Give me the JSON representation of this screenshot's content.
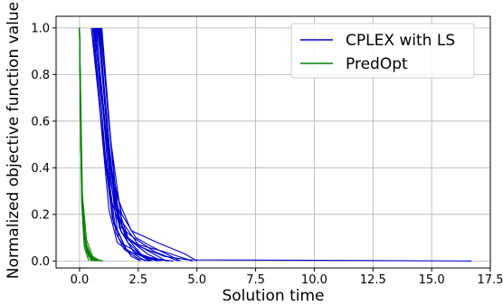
{
  "chart_data": {
    "type": "line",
    "title": "",
    "xlabel": "Solution time",
    "ylabel": "Normalized objective function value",
    "xlim": [
      -1.0,
      17.5
    ],
    "ylim": [
      -0.03,
      1.05
    ],
    "xticks": [
      0.0,
      2.5,
      5.0,
      7.5,
      10.0,
      12.5,
      15.0,
      17.5
    ],
    "xtick_labels": [
      "0.0",
      "2.5",
      "5.0",
      "7.5",
      "10.0",
      "12.5",
      "15.0",
      "17.5"
    ],
    "yticks": [
      0.0,
      0.2,
      0.4,
      0.6,
      0.8,
      1.0
    ],
    "ytick_labels": [
      "0.0",
      "0.2",
      "0.4",
      "0.6",
      "0.8",
      "1.0"
    ],
    "grid": true,
    "legend_position": "top-right",
    "series": [
      {
        "name": "CPLEX with LS",
        "color": "#0000cc",
        "lines": [
          {
            "x": [
              0.5,
              0.9,
              1.3,
              1.8,
              2.6,
              3.6,
              4.6,
              16.7
            ],
            "y": [
              1.0,
              0.62,
              0.28,
              0.12,
              0.06,
              0.02,
              0.005,
              0.0
            ]
          },
          {
            "x": [
              0.55,
              0.95,
              1.25,
              1.6,
              2.1,
              3.0,
              4.0
            ],
            "y": [
              1.0,
              0.55,
              0.22,
              0.08,
              0.04,
              0.01,
              0.0
            ]
          },
          {
            "x": [
              0.6,
              1.0,
              1.4,
              1.9,
              2.6,
              3.4
            ],
            "y": [
              1.0,
              0.5,
              0.18,
              0.07,
              0.03,
              0.0
            ]
          },
          {
            "x": [
              0.62,
              1.05,
              1.5,
              2.2,
              3.3,
              4.5,
              5.0
            ],
            "y": [
              1.0,
              0.6,
              0.3,
              0.13,
              0.08,
              0.03,
              0.0
            ]
          },
          {
            "x": [
              0.65,
              1.1,
              1.45,
              2.0,
              2.8
            ],
            "y": [
              1.0,
              0.45,
              0.16,
              0.05,
              0.0
            ]
          },
          {
            "x": [
              0.68,
              0.98,
              1.3,
              1.7,
              2.3,
              3.2,
              4.2
            ],
            "y": [
              1.0,
              0.7,
              0.35,
              0.15,
              0.1,
              0.04,
              0.0
            ]
          },
          {
            "x": [
              0.7,
              1.15,
              1.6,
              2.1,
              2.7,
              3.8
            ],
            "y": [
              1.0,
              0.52,
              0.2,
              0.09,
              0.02,
              0.0
            ]
          },
          {
            "x": [
              0.72,
              1.2,
              1.55,
              1.9,
              2.5,
              3.0
            ],
            "y": [
              1.0,
              0.4,
              0.12,
              0.05,
              0.01,
              0.0
            ]
          },
          {
            "x": [
              0.75,
              1.0,
              1.35,
              1.8,
              2.4,
              3.1,
              3.9,
              4.3
            ],
            "y": [
              1.0,
              0.8,
              0.4,
              0.2,
              0.1,
              0.06,
              0.02,
              0.0
            ]
          },
          {
            "x": [
              0.78,
              1.25,
              1.7,
              2.3,
              3.0
            ],
            "y": [
              1.0,
              0.48,
              0.14,
              0.04,
              0.0
            ]
          },
          {
            "x": [
              0.8,
              1.1,
              1.5,
              2.0,
              2.9,
              3.5
            ],
            "y": [
              1.0,
              0.65,
              0.25,
              0.1,
              0.03,
              0.0
            ]
          },
          {
            "x": [
              0.82,
              1.3,
              1.65,
              2.2,
              2.6
            ],
            "y": [
              1.0,
              0.38,
              0.1,
              0.02,
              0.0
            ]
          },
          {
            "x": [
              0.85,
              1.18,
              1.55,
              2.05,
              2.7,
              3.3
            ],
            "y": [
              1.0,
              0.58,
              0.22,
              0.08,
              0.02,
              0.0
            ]
          },
          {
            "x": [
              0.88,
              1.35,
              1.8,
              2.5,
              3.6,
              4.8
            ],
            "y": [
              1.0,
              0.5,
              0.17,
              0.07,
              0.04,
              0.0
            ]
          },
          {
            "x": [
              0.92,
              1.22,
              1.6,
              2.1,
              2.8,
              3.7
            ],
            "y": [
              1.0,
              0.62,
              0.24,
              0.09,
              0.05,
              0.0
            ]
          },
          {
            "x": [
              0.95,
              1.4,
              1.75,
              2.3,
              3.1
            ],
            "y": [
              1.0,
              0.42,
              0.13,
              0.04,
              0.0
            ]
          }
        ]
      },
      {
        "name": "PredOpt",
        "color": "#008000",
        "lines": [
          {
            "x": [
              0.0,
              0.05,
              0.12,
              0.3,
              0.6,
              1.0
            ],
            "y": [
              1.0,
              0.5,
              0.2,
              0.05,
              0.01,
              0.0
            ]
          },
          {
            "x": [
              0.0,
              0.08,
              0.2,
              0.45,
              0.8
            ],
            "y": [
              1.0,
              0.35,
              0.1,
              0.02,
              0.0
            ]
          },
          {
            "x": [
              0.0,
              0.04,
              0.1,
              0.25,
              0.5,
              0.7
            ],
            "y": [
              1.0,
              0.6,
              0.3,
              0.08,
              0.02,
              0.0
            ]
          },
          {
            "x": [
              0.0,
              0.1,
              0.25,
              0.5
            ],
            "y": [
              1.0,
              0.3,
              0.06,
              0.0
            ]
          },
          {
            "x": [
              0.0,
              0.06,
              0.15,
              0.35,
              0.6
            ],
            "y": [
              1.0,
              0.45,
              0.15,
              0.03,
              0.0
            ]
          },
          {
            "x": [
              0.0,
              0.03,
              0.09,
              0.2,
              0.4
            ],
            "y": [
              1.0,
              0.7,
              0.25,
              0.06,
              0.0
            ]
          },
          {
            "x": [
              0.0,
              0.12,
              0.3,
              0.55,
              0.9
            ],
            "y": [
              1.0,
              0.28,
              0.09,
              0.02,
              0.0
            ]
          },
          {
            "x": [
              0.0,
              0.07,
              0.18,
              0.4,
              0.65
            ],
            "y": [
              1.0,
              0.4,
              0.12,
              0.03,
              0.0
            ]
          },
          {
            "x": [
              0.0,
              0.05,
              0.14,
              0.3,
              0.55
            ],
            "y": [
              1.0,
              0.55,
              0.18,
              0.04,
              0.0
            ]
          },
          {
            "x": [
              0.0,
              0.09,
              0.22,
              0.38,
              0.75
            ],
            "y": [
              1.0,
              0.33,
              0.11,
              0.02,
              0.0
            ]
          }
        ]
      }
    ]
  }
}
